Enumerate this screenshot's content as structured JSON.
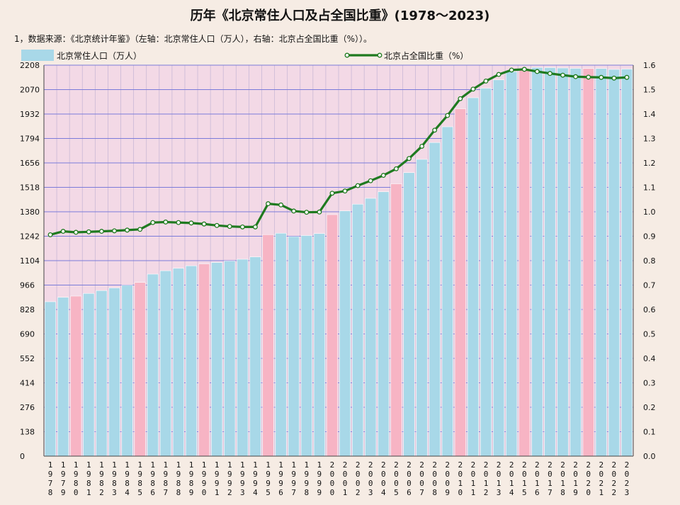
{
  "title": "历年《北京常住人口及占全国比重》(1978～2023)",
  "note": "1，数据来源：《北京统计年鉴》（左轴：北京常住人口（万人），右轴：北京占全国比重（%））。",
  "colors": {
    "bar_blue": "#a8d8e8",
    "bar_pink": "#f7b4c4",
    "line": "#1f7a1f",
    "marker_fill": "#ffffff",
    "grid": "#7b7bd9",
    "plot_bg": "#f3d9e6"
  },
  "chart_data": {
    "type": "bar",
    "legend_position": "top",
    "grid": true,
    "categories": [
      "1978",
      "1979",
      "1980",
      "1981",
      "1982",
      "1983",
      "1984",
      "1985",
      "1986",
      "1987",
      "1988",
      "1989",
      "1990",
      "1991",
      "1992",
      "1993",
      "1994",
      "1995",
      "1996",
      "1997",
      "1998",
      "1999",
      "2000",
      "2001",
      "2002",
      "2003",
      "2004",
      "2005",
      "2006",
      "2007",
      "2008",
      "2009",
      "2010",
      "2011",
      "2012",
      "2013",
      "2014",
      "2015",
      "2016",
      "2017",
      "2018",
      "2019",
      "2020",
      "2021",
      "2022",
      "2023"
    ],
    "y_left": {
      "ticks": [
        "0",
        "138",
        "276",
        "414",
        "552",
        "690",
        "828",
        "966",
        "1104",
        "1242",
        "1380",
        "1518",
        "1656",
        "1794",
        "1932",
        "2070",
        "2208"
      ],
      "range": [
        0,
        2208
      ]
    },
    "y_right": {
      "ticks": [
        "0.0",
        "0.1",
        "0.2",
        "0.3",
        "0.4",
        "0.5",
        "0.6",
        "0.7",
        "0.8",
        "0.9",
        "1.0",
        "1.1",
        "1.2",
        "1.3",
        "1.4",
        "1.5",
        "1.6"
      ],
      "range": [
        0,
        1.6
      ]
    },
    "highlighted_categories": [
      "1980",
      "1985",
      "1990",
      "1995",
      "2000",
      "2005",
      "2010",
      "2015",
      "2020"
    ],
    "series": [
      {
        "name": "北京常住人口（万人）",
        "type": "bar",
        "axis": "left",
        "values": [
          872,
          897,
          904,
          919,
          935,
          950,
          965,
          981,
          1028,
          1047,
          1061,
          1075,
          1086,
          1094,
          1102,
          1112,
          1125,
          1251,
          1259,
          1240,
          1246,
          1257,
          1364,
          1385,
          1423,
          1456,
          1493,
          1538,
          1601,
          1676,
          1771,
          1860,
          1962,
          2024,
          2078,
          2125,
          2171,
          2188,
          2195,
          2194,
          2192,
          2190,
          2189,
          2189,
          2184,
          2186
        ]
      },
      {
        "name": "北京占全国比重（%）",
        "type": "line",
        "axis": "right",
        "values": [
          0.906,
          0.92,
          0.916,
          0.918,
          0.92,
          0.922,
          0.925,
          0.928,
          0.956,
          0.958,
          0.956,
          0.954,
          0.95,
          0.944,
          0.94,
          0.938,
          0.938,
          1.033,
          1.028,
          1.003,
          0.998,
          0.999,
          1.076,
          1.085,
          1.107,
          1.127,
          1.149,
          1.176,
          1.218,
          1.268,
          1.334,
          1.394,
          1.463,
          1.502,
          1.535,
          1.562,
          1.58,
          1.583,
          1.574,
          1.566,
          1.559,
          1.553,
          1.551,
          1.55,
          1.547,
          1.55
        ]
      }
    ]
  }
}
